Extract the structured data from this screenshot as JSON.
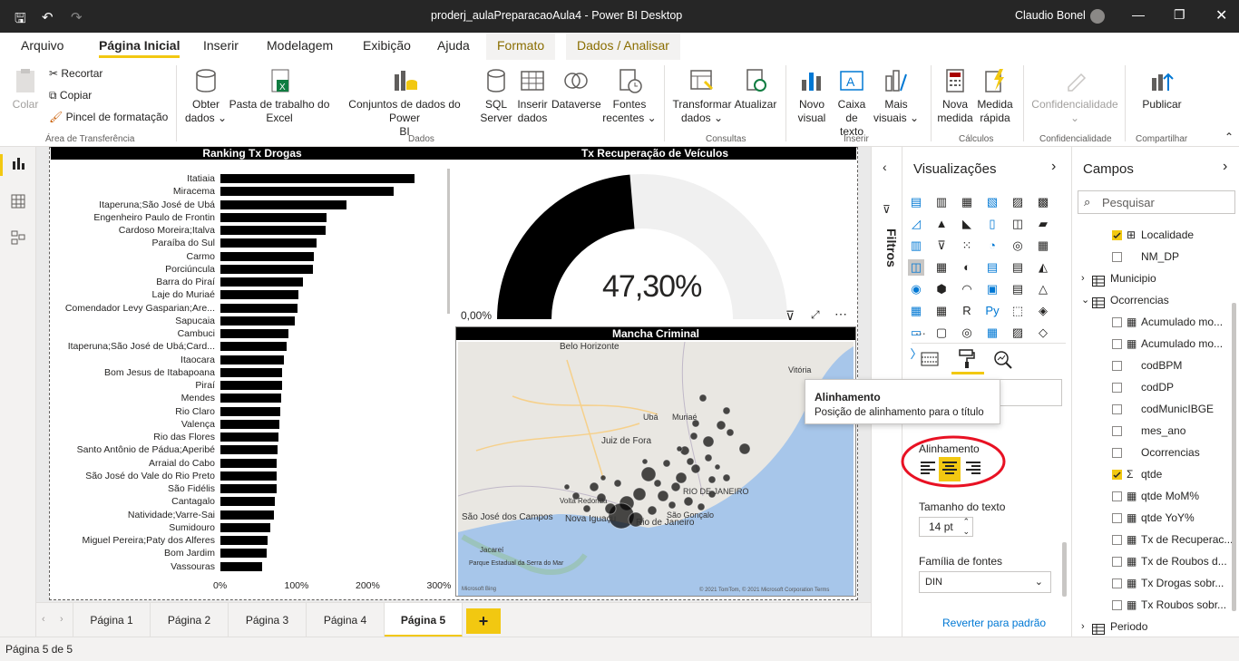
{
  "window": {
    "title": "proderj_aulaPreparacaoAula4 - Power BI Desktop",
    "user": "Claudio Bonel"
  },
  "tabs": [
    "Arquivo",
    "Página Inicial",
    "Inserir",
    "Modelagem",
    "Exibição",
    "Ajuda",
    "Formato",
    "Dados / Analisar"
  ],
  "ribbon": {
    "colar": "Colar",
    "recortar": "Recortar",
    "copiar": "Copiar",
    "pincel": "Pincel de formatação",
    "area_transf": "Área de Transferência",
    "obter_dados": "Obter dados",
    "pasta_excel_1": "Pasta de trabalho do",
    "pasta_excel_2": "Excel",
    "conjuntos_1": "Conjuntos de dados do Power",
    "conjuntos_2": "BI",
    "sql_1": "SQL",
    "sql_2": "Server",
    "inserir_dados_1": "Inserir",
    "inserir_dados_2": "dados",
    "dataverse": "Dataverse",
    "fontes_1": "Fontes",
    "fontes_2": "recentes",
    "dados_group": "Dados",
    "transformar_1": "Transformar",
    "transformar_2": "dados",
    "atualizar": "Atualizar",
    "consultas": "Consultas",
    "novo_visual_1": "Novo",
    "novo_visual_2": "visual",
    "caixa_1": "Caixa de",
    "caixa_2": "texto",
    "mais_1": "Mais",
    "mais_2": "visuais",
    "inserir_group": "Inserir",
    "nova_medida_1": "Nova",
    "nova_medida_2": "medida",
    "medida_rapida_1": "Medida",
    "medida_rapida_2": "rápida",
    "calculos": "Cálculos",
    "confidencialidade": "Confidencialidade",
    "confid_group": "Confidencialidade",
    "publicar": "Publicar",
    "compartilhar": "Compartilhar"
  },
  "ranking": {
    "title": "Ranking Tx Drogas",
    "ticks": [
      "0%",
      "100%",
      "200%",
      "300%"
    ],
    "bars": [
      {
        "label": "Itatiaia",
        "value": 272
      },
      {
        "label": "Miracema",
        "value": 243
      },
      {
        "label": "Itaperuna;São José de Ubá",
        "value": 177
      },
      {
        "label": "Engenheiro Paulo de Frontin",
        "value": 149
      },
      {
        "label": "Cardoso Moreira;Italva",
        "value": 148
      },
      {
        "label": "Paraíba do Sul",
        "value": 135
      },
      {
        "label": "Carmo",
        "value": 131
      },
      {
        "label": "Porciúncula",
        "value": 130
      },
      {
        "label": "Barra do Piraí",
        "value": 116
      },
      {
        "label": "Laje do Muriaé",
        "value": 110
      },
      {
        "label": "Comendador Levy Gasparian;Are...",
        "value": 108
      },
      {
        "label": "Sapucaia",
        "value": 105
      },
      {
        "label": "Cambuci",
        "value": 95
      },
      {
        "label": "Itaperuna;São José de Ubá;Card...",
        "value": 93
      },
      {
        "label": "Itaocara",
        "value": 89
      },
      {
        "label": "Bom Jesus de Itabapoana",
        "value": 87
      },
      {
        "label": "Piraí",
        "value": 86
      },
      {
        "label": "Mendes",
        "value": 85
      },
      {
        "label": "Rio Claro",
        "value": 84
      },
      {
        "label": "Valença",
        "value": 83
      },
      {
        "label": "Rio das Flores",
        "value": 81
      },
      {
        "label": "Santo Antônio de Pádua;Aperibé",
        "value": 80
      },
      {
        "label": "Arraial do Cabo",
        "value": 79
      },
      {
        "label": "São José do Vale do Rio Preto",
        "value": 79
      },
      {
        "label": "São Fidélis",
        "value": 79
      },
      {
        "label": "Cantagalo",
        "value": 77
      },
      {
        "label": "Natividade;Varre-Sai",
        "value": 75
      },
      {
        "label": "Sumidouro",
        "value": 70
      },
      {
        "label": "Miguel Pereira;Paty dos Alferes",
        "value": 66
      },
      {
        "label": "Bom Jardim",
        "value": 65
      },
      {
        "label": "Vassouras",
        "value": 58
      }
    ]
  },
  "gauge": {
    "title": "Tx Recuperação de Veículos",
    "value_label": "47,30%",
    "min_label": "0,00%",
    "fraction": 0.473
  },
  "map": {
    "title": "Mancha Criminal",
    "places": [
      "Belo Horizonte",
      "Vitória",
      "Ubá",
      "Muriaé",
      "Juiz de Fora",
      "Volta Redonda",
      "Nova Iguaçu",
      "Rio de Janeiro",
      "São Gonçalo",
      "RIO DE JANEIRO",
      "São José dos Campos",
      "Jacareí",
      "Parque Estadual da Serra do Mar"
    ],
    "attribution": "© 2021 TomTom, © 2021 Microsoft Corporation  Terms",
    "bing": "Microsoft Bing"
  },
  "filters_label": "Filtros",
  "viz": {
    "title": "Visualizações",
    "search_value": "",
    "alinhamento": "Alinhamento",
    "tamanho": "Tamanho do texto",
    "tamanho_value": "14",
    "tamanho_unit": "pt",
    "familia": "Família de fontes",
    "familia_value": "DIN",
    "reverter": "Reverter para padrão",
    "more": "..."
  },
  "tooltip": {
    "title": "Alinhamento",
    "body": "Posição de alinhamento para o título"
  },
  "fields": {
    "title": "Campos",
    "search_placeholder": "Pesquisar",
    "items": [
      {
        "label": "Localidade",
        "checked": true,
        "type": "geo"
      },
      {
        "label": "NM_DP",
        "checked": false,
        "type": "none"
      },
      {
        "label": "Municipio",
        "checked": false,
        "type": "table"
      },
      {
        "label": "Ocorrencias",
        "checked": false,
        "type": "table"
      },
      {
        "label": "Acumulado mo...",
        "checked": false,
        "type": "calc"
      },
      {
        "label": "Acumulado mo...",
        "checked": false,
        "type": "calc"
      },
      {
        "label": "codBPM",
        "checked": false,
        "type": "none"
      },
      {
        "label": "codDP",
        "checked": false,
        "type": "none"
      },
      {
        "label": "codMunicIBGE",
        "checked": false,
        "type": "none"
      },
      {
        "label": "mes_ano",
        "checked": false,
        "type": "none"
      },
      {
        "label": "Ocorrencias",
        "checked": false,
        "type": "none"
      },
      {
        "label": "qtde",
        "checked": true,
        "type": "sigma"
      },
      {
        "label": "qtde MoM%",
        "checked": false,
        "type": "calc"
      },
      {
        "label": "qtde YoY%",
        "checked": false,
        "type": "calc"
      },
      {
        "label": "Tx de Recuperac...",
        "checked": false,
        "type": "calc"
      },
      {
        "label": "Tx de Roubos d...",
        "checked": false,
        "type": "calc"
      },
      {
        "label": "Tx Drogas sobr...",
        "checked": false,
        "type": "calc"
      },
      {
        "label": "Tx Roubos sobr...",
        "checked": false,
        "type": "calc"
      },
      {
        "label": "Periodo",
        "checked": false,
        "type": "table"
      }
    ]
  },
  "pages": [
    "Página 1",
    "Página 2",
    "Página 3",
    "Página 4",
    "Página 5"
  ],
  "add_page": "+",
  "status": "Página 5 de 5"
}
